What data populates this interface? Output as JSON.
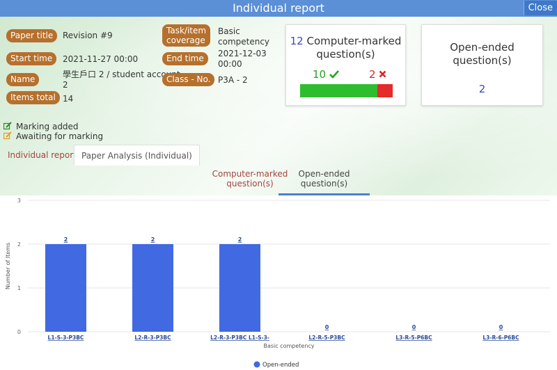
{
  "window": {
    "title": "Individual report",
    "close_label": "Close"
  },
  "info": {
    "paper_title_label": "Paper title",
    "paper_title": "Revision #9",
    "coverage_label_1": "Task/item",
    "coverage_label_2": "coverage",
    "coverage_1": "Basic",
    "coverage_2": "competency",
    "start_label": "Start time",
    "start": "2021-11-27 00:00",
    "end_label": "End time",
    "end_1": "2021-12-03",
    "end_2": "00:00",
    "name_label": "Name",
    "name_1": "學生戶口 2 / student account",
    "name_2": "2",
    "class_label": "Class - No.",
    "class_value": "P3A - 2",
    "items_label": "Items total",
    "items_total": "14"
  },
  "cards": {
    "computer": {
      "count": "12",
      "title_1": "Computer-marked",
      "title_2": "question(s)",
      "correct": "10",
      "wrong": "2",
      "correct_fraction": 0.833
    },
    "open": {
      "title_1": "Open-ended",
      "title_2": "question(s)",
      "count": "2"
    }
  },
  "legend_top": {
    "added": "Marking added",
    "awaiting": "Awaiting for marking"
  },
  "tabs": {
    "individual": "Individual report",
    "analysis": "Paper Analysis (Individual)"
  },
  "subtabs": {
    "cm_1": "Computer-marked",
    "cm_2": "question(s)",
    "oe_1": "Open-ended",
    "oe_2": "question(s)"
  },
  "colors": {
    "bar": "#4169e1",
    "accent": "#5b8fd6",
    "label_bg": "#b6702d"
  },
  "chart_data": {
    "type": "bar",
    "categories": [
      "L1-S-3-P3BC",
      "L2-R-3-P3BC",
      "L2-R-3-P3BC L1-S-3-",
      "L2-R-5-P3BC",
      "L3-R-5-P6BC",
      "L3-R-6-P6BC"
    ],
    "series": [
      {
        "name": "Open-ended",
        "values": [
          2,
          2,
          2,
          0,
          0,
          0
        ]
      }
    ],
    "data_labels": [
      "2",
      "2",
      "2",
      "0",
      "0",
      "0"
    ],
    "ylabel": "Number of Items",
    "xlabel": "Basic competency",
    "ylim": [
      0,
      3
    ],
    "yticks": [
      "0",
      "1",
      "2",
      "3"
    ],
    "grid": true,
    "legend": "bottom-center"
  }
}
